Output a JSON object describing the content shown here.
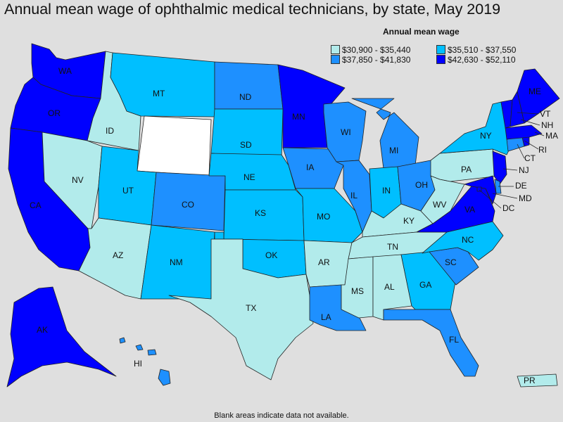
{
  "title": "Annual mean wage of ophthalmic medical technicians, by state, May 2019",
  "legend": {
    "title": "Annual mean wage",
    "bins": [
      {
        "label": "$30,900 - $35,440",
        "color": "#b2ebeb"
      },
      {
        "label": "$35,510 - $37,550",
        "color": "#00bfff"
      },
      {
        "label": "$37,850 - $41,830",
        "color": "#1e90ff"
      },
      {
        "label": "$42,630 - $52,110",
        "color": "#0000ff"
      }
    ]
  },
  "no_data_color": "#ffffff",
  "footnote": "Blank areas indicate data not available.",
  "states": {
    "WA": {
      "label": "WA",
      "bin": 3
    },
    "OR": {
      "label": "OR",
      "bin": 3
    },
    "CA": {
      "label": "CA",
      "bin": 3
    },
    "AK": {
      "label": "AK",
      "bin": 3
    },
    "ID": {
      "label": "ID",
      "bin": 0
    },
    "NV": {
      "label": "NV",
      "bin": 0
    },
    "AZ": {
      "label": "AZ",
      "bin": 0
    },
    "TX": {
      "label": "TX",
      "bin": 0
    },
    "AR": {
      "label": "AR",
      "bin": 0
    },
    "MS": {
      "label": "MS",
      "bin": 0
    },
    "AL": {
      "label": "AL",
      "bin": 0
    },
    "TN": {
      "label": "TN",
      "bin": 0
    },
    "KY": {
      "label": "KY",
      "bin": 0
    },
    "WV": {
      "label": "WV",
      "bin": 0
    },
    "PA": {
      "label": "PA",
      "bin": 0
    },
    "PR": {
      "label": "PR",
      "bin": 0
    },
    "MT": {
      "label": "MT",
      "bin": 1
    },
    "UT": {
      "label": "UT",
      "bin": 1
    },
    "NM": {
      "label": "NM",
      "bin": 1
    },
    "SD": {
      "label": "SD",
      "bin": 1
    },
    "NE": {
      "label": "NE",
      "bin": 1
    },
    "KS": {
      "label": "KS",
      "bin": 1
    },
    "OK": {
      "label": "OK",
      "bin": 1
    },
    "MO": {
      "label": "MO",
      "bin": 1
    },
    "IN": {
      "label": "IN",
      "bin": 1
    },
    "NY": {
      "label": "NY",
      "bin": 1
    },
    "NC": {
      "label": "NC",
      "bin": 1
    },
    "GA": {
      "label": "GA",
      "bin": 1
    },
    "ND": {
      "label": "ND",
      "bin": 2
    },
    "CO": {
      "label": "CO",
      "bin": 2
    },
    "IA": {
      "label": "IA",
      "bin": 2
    },
    "WI": {
      "label": "WI",
      "bin": 2
    },
    "IL": {
      "label": "IL",
      "bin": 2
    },
    "MI": {
      "label": "MI",
      "bin": 2
    },
    "OH": {
      "label": "OH",
      "bin": 2
    },
    "SC": {
      "label": "SC",
      "bin": 2
    },
    "FL": {
      "label": "FL",
      "bin": 2
    },
    "LA": {
      "label": "LA",
      "bin": 2
    },
    "HI": {
      "label": "HI",
      "bin": 2
    },
    "CT": {
      "label": "CT",
      "bin": 2
    },
    "DE": {
      "label": "DE",
      "bin": 2
    },
    "MN": {
      "label": "MN",
      "bin": 3
    },
    "VA": {
      "label": "VA",
      "bin": 3
    },
    "MD": {
      "label": "MD",
      "bin": 3
    },
    "NJ": {
      "label": "NJ",
      "bin": 3
    },
    "ME": {
      "label": "ME",
      "bin": 3
    },
    "VT": {
      "label": "VT",
      "bin": 3
    },
    "NH": {
      "label": "NH",
      "bin": 3
    },
    "MA": {
      "label": "MA",
      "bin": 3
    },
    "RI": {
      "label": "RI",
      "bin": 3
    },
    "DC": {
      "label": "DC",
      "bin": 3
    },
    "WY": {
      "label": "",
      "bin": null
    }
  }
}
